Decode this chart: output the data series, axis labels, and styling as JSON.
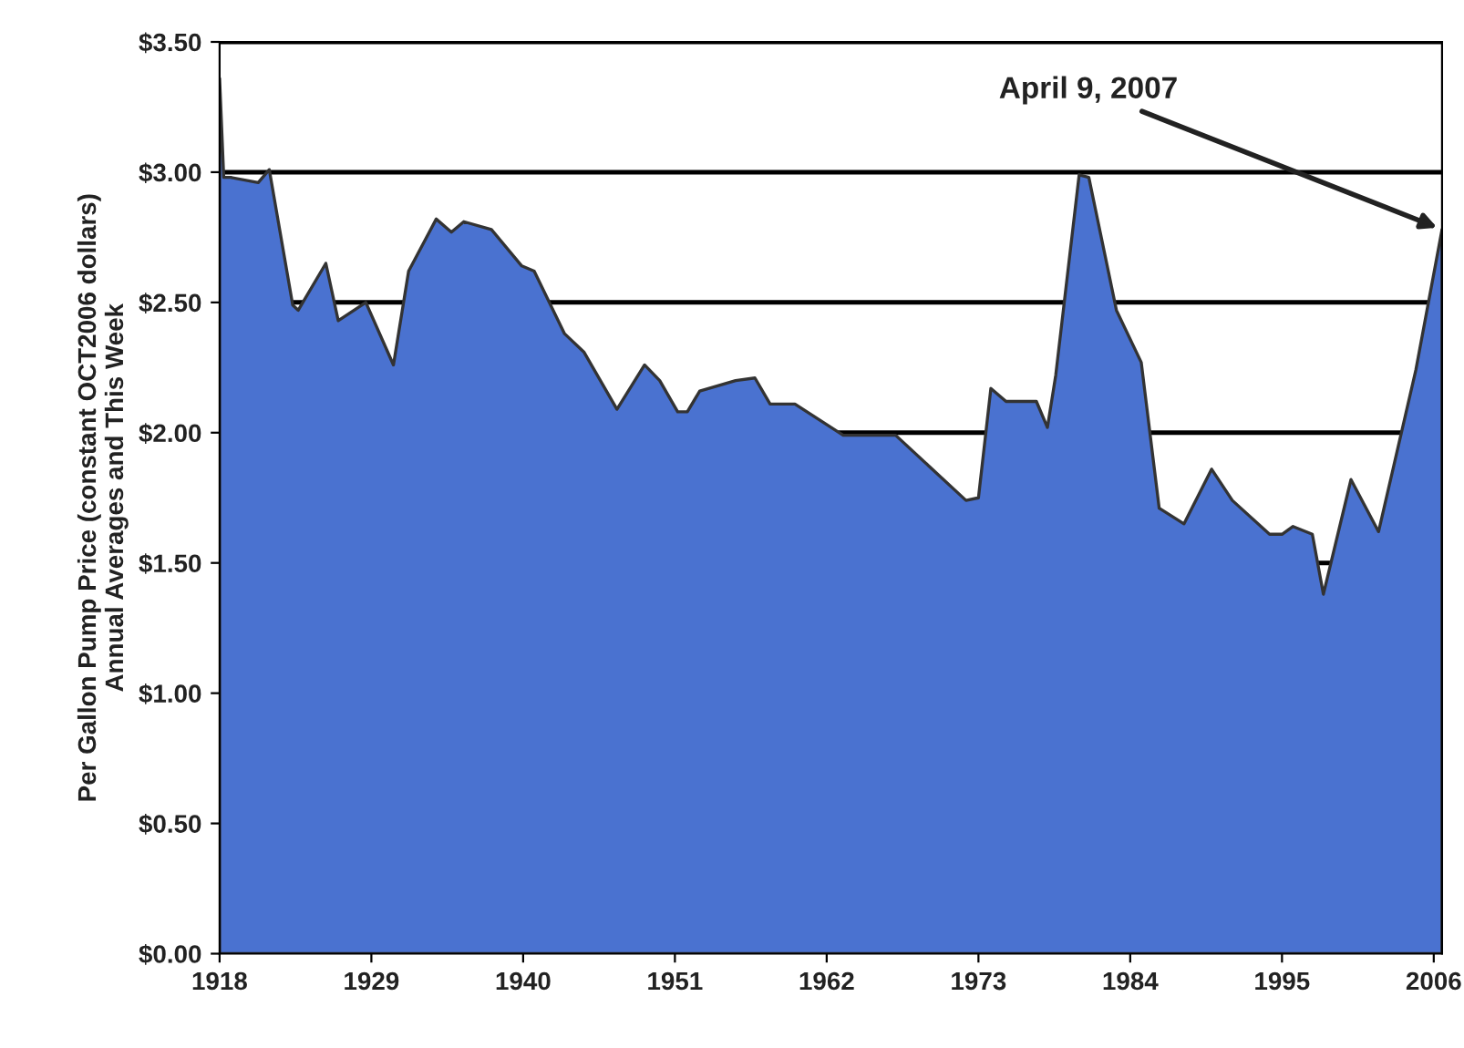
{
  "chart_data": {
    "type": "area",
    "ylabel": "Per Gallon Pump Price (constant OCT2006 dollars)\nAnnual Averages and This Week",
    "x": [
      1918.0,
      1918.3,
      1918.8,
      1920.8,
      1921.6,
      1923.3,
      1923.7,
      1925.7,
      1926.6,
      1928.6,
      1930.6,
      1931.7,
      1933.7,
      1934.8,
      1935.7,
      1937.7,
      1939.9,
      1940.8,
      1943.0,
      1944.4,
      1946.8,
      1948.8,
      1949.9,
      1951.2,
      1951.9,
      1952.8,
      1955.4,
      1956.8,
      1957.9,
      1959.7,
      1963.2,
      1967.0,
      1972.1,
      1973.0,
      1973.9,
      1975.0,
      1977.2,
      1978.0,
      1978.6,
      1980.3,
      1981.0,
      1983.0,
      1984.8,
      1986.1,
      1987.9,
      1989.9,
      1991.4,
      1994.1,
      1995.0,
      1995.8,
      1997.2,
      1998.0,
      2000.0,
      2002.0,
      2004.7,
      2006.6
    ],
    "series": [
      {
        "color": "#4a72d0",
        "values": [
          3.36,
          2.98,
          2.98,
          2.96,
          3.01,
          2.49,
          2.47,
          2.65,
          2.43,
          2.5,
          2.26,
          2.62,
          2.82,
          2.77,
          2.81,
          2.78,
          2.64,
          2.62,
          2.38,
          2.31,
          2.09,
          2.26,
          2.2,
          2.08,
          2.08,
          2.16,
          2.2,
          2.21,
          2.11,
          2.11,
          1.99,
          1.99,
          1.74,
          1.75,
          2.17,
          2.12,
          2.12,
          2.02,
          2.22,
          2.99,
          2.98,
          2.47,
          2.27,
          1.71,
          1.65,
          1.86,
          1.74,
          1.61,
          1.61,
          1.64,
          1.61,
          1.38,
          1.82,
          1.62,
          2.24,
          2.78
        ]
      }
    ],
    "xlim": [
      1918,
      2006.6
    ],
    "xticks": [
      1918,
      1929,
      1940,
      1951,
      1962,
      1973,
      1984,
      1995,
      2006
    ],
    "ylim": [
      0,
      3.5
    ],
    "yticks": [
      {
        "value": 0,
        "label": "$0.00"
      },
      {
        "value": 0.5,
        "label": "$0.50"
      },
      {
        "value": 1,
        "label": "$1.00"
      },
      {
        "value": 1.5,
        "label": "$1.50"
      },
      {
        "value": 2,
        "label": "$2.00"
      },
      {
        "value": 2.5,
        "label": "$2.50"
      },
      {
        "value": 3,
        "label": "$3.00"
      },
      {
        "value": 3.5,
        "label": "$3.50"
      }
    ],
    "grid": "y",
    "annotations": [
      {
        "text": "April 9, 2007",
        "x": 2006.6,
        "y": 2.78
      }
    ]
  }
}
